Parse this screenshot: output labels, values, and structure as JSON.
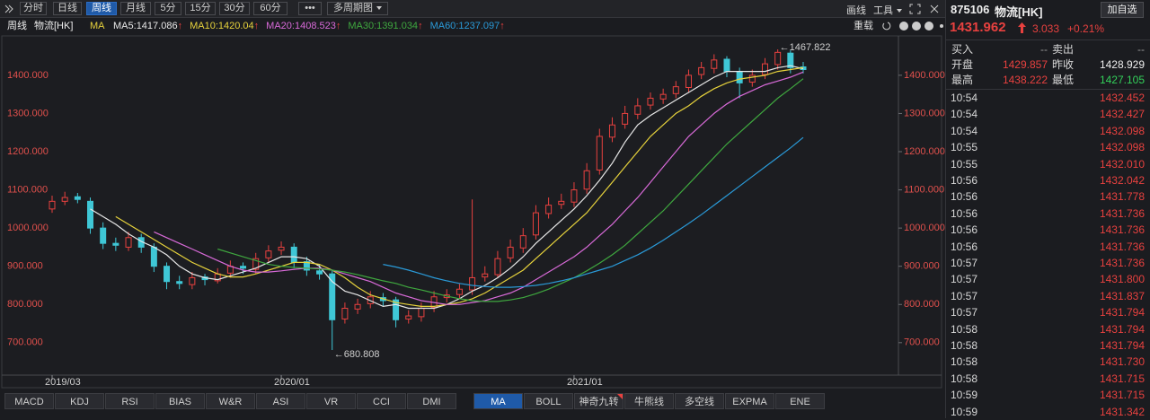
{
  "toolbar": {
    "periods": [
      "分时",
      "日线",
      "周线",
      "月线",
      "5分",
      "15分",
      "30分",
      "60分"
    ],
    "active": 2,
    "more": "•••",
    "multi": "多周期图",
    "draw": "画线",
    "tools": "工具"
  },
  "legend": {
    "period": "周线",
    "symbol": "物流[HK]",
    "indicator": "MA",
    "reload": "重载"
  },
  "chart_data": {
    "type": "candlestick",
    "categories": [
      "2019/03",
      null,
      null,
      null,
      null,
      null,
      null,
      null,
      null,
      null,
      null,
      null,
      null,
      null,
      null,
      null,
      null,
      null,
      "2020/01",
      null,
      null,
      null,
      null,
      null,
      null,
      null,
      null,
      null,
      null,
      null,
      null,
      null,
      null,
      null,
      null,
      null,
      null,
      null,
      null,
      null,
      null,
      "2021/01",
      null,
      null,
      null,
      null,
      null,
      null,
      null,
      null,
      null,
      null,
      null,
      null,
      null,
      null,
      null,
      null,
      null,
      null
    ],
    "candles": {
      "up_color": "#e8413f",
      "down_color": "#3fc7d6",
      "open": [
        1050,
        1070,
        1082,
        1070,
        1000,
        960,
        950,
        975,
        950,
        900,
        860,
        852,
        872,
        862,
        882,
        900,
        892,
        922,
        942,
        950,
        912,
        888,
        880,
        762,
        788,
        802,
        818,
        812,
        762,
        768,
        792,
        818,
        826,
        838,
        872,
        878,
        922,
        948,
        982,
        1038,
        1062,
        1068,
        1102,
        1152,
        1238,
        1272,
        1298,
        1322,
        1338,
        1352,
        1368,
        1402,
        1418,
        1442,
        1408,
        1382,
        1402,
        1428,
        1458,
        1422
      ],
      "high": [
        1085,
        1095,
        1092,
        1080,
        1015,
        975,
        990,
        985,
        960,
        910,
        875,
        885,
        880,
        895,
        915,
        910,
        935,
        955,
        965,
        960,
        925,
        905,
        890,
        805,
        815,
        835,
        830,
        820,
        785,
        805,
        835,
        840,
        855,
        1075,
        900,
        940,
        970,
        1000,
        1060,
        1080,
        1090,
        1120,
        1170,
        1260,
        1290,
        1320,
        1340,
        1355,
        1365,
        1385,
        1415,
        1435,
        1455,
        1450,
        1420,
        1415,
        1445,
        1467.822,
        1465,
        1435
      ],
      "low": [
        1040,
        1060,
        1065,
        985,
        945,
        940,
        940,
        935,
        885,
        840,
        840,
        840,
        850,
        855,
        870,
        880,
        880,
        910,
        930,
        895,
        875,
        865,
        680.808,
        750,
        775,
        790,
        795,
        740,
        750,
        755,
        780,
        805,
        815,
        825,
        860,
        870,
        910,
        935,
        970,
        1025,
        1050,
        1055,
        1090,
        1140,
        1225,
        1260,
        1285,
        1310,
        1325,
        1340,
        1355,
        1390,
        1405,
        1395,
        1340,
        1370,
        1390,
        1415,
        1405,
        1405
      ],
      "close": [
        1070,
        1080,
        1075,
        1000,
        960,
        955,
        975,
        950,
        900,
        860,
        855,
        870,
        865,
        880,
        900,
        895,
        920,
        940,
        950,
        910,
        890,
        880,
        760,
        790,
        800,
        820,
        810,
        760,
        770,
        790,
        820,
        825,
        840,
        870,
        880,
        920,
        950,
        980,
        1040,
        1060,
        1070,
        1100,
        1150,
        1240,
        1270,
        1300,
        1320,
        1340,
        1350,
        1370,
        1400,
        1420,
        1440,
        1410,
        1380,
        1400,
        1430,
        1460,
        1420,
        1415
      ]
    },
    "ma_series": [
      {
        "name": "MA5",
        "color": "#e8e8e8",
        "values": [
          null,
          null,
          null,
          1050,
          1030,
          1010,
          985,
          965,
          950,
          930,
          900,
          880,
          870,
          865,
          875,
          885,
          895,
          910,
          925,
          925,
          920,
          900,
          860,
          835,
          825,
          810,
          795,
          800,
          790,
          790,
          790,
          800,
          815,
          835,
          850,
          870,
          895,
          925,
          960,
          990,
          1020,
          1050,
          1085,
          1125,
          1170,
          1225,
          1270,
          1295,
          1315,
          1335,
          1355,
          1375,
          1395,
          1410,
          1410,
          1410,
          1410,
          1420,
          1425,
          1417.086
        ]
      },
      {
        "name": "MA10",
        "color": "#e6d23c",
        "values": [
          null,
          null,
          null,
          null,
          null,
          1030,
          1010,
          990,
          970,
          950,
          930,
          910,
          895,
          880,
          872,
          872,
          880,
          890,
          900,
          910,
          910,
          905,
          890,
          870,
          845,
          825,
          815,
          805,
          800,
          795,
          795,
          800,
          805,
          815,
          830,
          850,
          870,
          890,
          920,
          950,
          980,
          1010,
          1040,
          1080,
          1120,
          1160,
          1200,
          1240,
          1270,
          1300,
          1320,
          1345,
          1365,
          1380,
          1390,
          1395,
          1400,
          1410,
          1415,
          1420.04
        ]
      },
      {
        "name": "MA20",
        "color": "#d86ad8",
        "values": [
          null,
          null,
          null,
          null,
          null,
          null,
          null,
          null,
          990,
          975,
          960,
          945,
          930,
          915,
          900,
          890,
          885,
          885,
          888,
          892,
          895,
          895,
          890,
          880,
          870,
          860,
          845,
          830,
          820,
          810,
          805,
          800,
          800,
          805,
          810,
          820,
          830,
          845,
          865,
          885,
          905,
          925,
          950,
          980,
          1010,
          1045,
          1080,
          1120,
          1160,
          1200,
          1240,
          1270,
          1300,
          1325,
          1345,
          1360,
          1375,
          1385,
          1395,
          1408.523
        ]
      },
      {
        "name": "MA30",
        "color": "#3fa83f",
        "values": [
          null,
          null,
          null,
          null,
          null,
          null,
          null,
          null,
          null,
          null,
          null,
          null,
          null,
          945,
          935,
          925,
          915,
          905,
          900,
          897,
          895,
          893,
          890,
          885,
          878,
          870,
          862,
          855,
          845,
          838,
          830,
          822,
          815,
          810,
          808,
          808,
          812,
          818,
          828,
          840,
          855,
          870,
          888,
          908,
          930,
          955,
          985,
          1015,
          1045,
          1080,
          1115,
          1150,
          1185,
          1220,
          1250,
          1280,
          1310,
          1340,
          1365,
          1391.034
        ]
      },
      {
        "name": "MA60",
        "color": "#2a9ad8",
        "values": [
          null,
          null,
          null,
          null,
          null,
          null,
          null,
          null,
          null,
          null,
          null,
          null,
          null,
          null,
          null,
          null,
          null,
          null,
          null,
          null,
          null,
          null,
          null,
          null,
          null,
          null,
          905,
          898,
          890,
          880,
          870,
          862,
          855,
          850,
          847,
          845,
          845,
          847,
          850,
          855,
          862,
          870,
          880,
          890,
          900,
          915,
          930,
          948,
          968,
          990,
          1012,
          1035,
          1060,
          1085,
          1110,
          1135,
          1160,
          1185,
          1210,
          1237.097
        ]
      }
    ],
    "ylim": [
      615,
      1489
    ],
    "yticks": [
      {
        "value": 700,
        "label": "700.000"
      },
      {
        "value": 800,
        "label": "800.000"
      },
      {
        "value": 900,
        "label": "900.000"
      },
      {
        "value": 1000,
        "label": "1000.000"
      },
      {
        "value": 1100,
        "label": "1100.000"
      },
      {
        "value": 1200,
        "label": "1200.000"
      },
      {
        "value": 1300,
        "label": "1300.000"
      },
      {
        "value": 1400,
        "label": "1400.000"
      }
    ],
    "annotations": {
      "max": "←1467.822",
      "min": "←680.808"
    }
  },
  "indicator_tabs": {
    "left": [
      "MACD",
      "KDJ",
      "RSI",
      "BIAS",
      "W&R",
      "ASI",
      "VR",
      "CCI",
      "DMI"
    ],
    "right": [
      "MA",
      "BOLL",
      "神奇九转",
      "牛熊线",
      "多空线",
      "EXPMA",
      "ENE"
    ],
    "active": 0
  },
  "quote": {
    "code": "875106",
    "name": "物流[HK]",
    "add": "加自选",
    "price": "1431.962",
    "change": "3.033",
    "change_pct": "+0.21%",
    "rows": [
      [
        "买入",
        "--",
        "卖出",
        "--"
      ],
      [
        "开盘",
        "1429.857",
        "昨收",
        "1428.929"
      ],
      [
        "最高",
        "1438.222",
        "最低",
        "1427.105"
      ]
    ],
    "trades": [
      [
        "10:54",
        "1432.452"
      ],
      [
        "10:54",
        "1432.427"
      ],
      [
        "10:54",
        "1432.098"
      ],
      [
        "10:55",
        "1432.098"
      ],
      [
        "10:55",
        "1432.010"
      ],
      [
        "10:56",
        "1432.042"
      ],
      [
        "10:56",
        "1431.778"
      ],
      [
        "10:56",
        "1431.736"
      ],
      [
        "10:56",
        "1431.736"
      ],
      [
        "10:56",
        "1431.736"
      ],
      [
        "10:57",
        "1431.736"
      ],
      [
        "10:57",
        "1431.800"
      ],
      [
        "10:57",
        "1431.837"
      ],
      [
        "10:57",
        "1431.794"
      ],
      [
        "10:58",
        "1431.794"
      ],
      [
        "10:58",
        "1431.794"
      ],
      [
        "10:58",
        "1431.730"
      ],
      [
        "10:58",
        "1431.715"
      ],
      [
        "10:59",
        "1431.715"
      ],
      [
        "10:59",
        "1431.342"
      ]
    ]
  }
}
